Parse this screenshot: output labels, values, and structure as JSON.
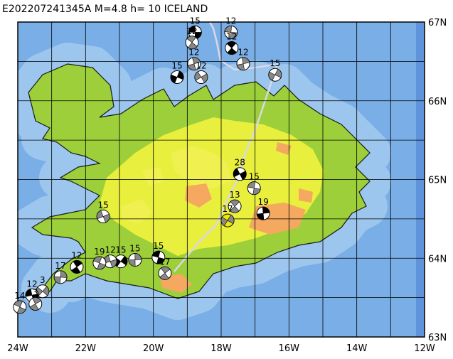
{
  "title": "E202207241345A M=4.8 h= 10 ICELAND",
  "map": {
    "xlim": [
      -24,
      -12
    ],
    "ylim": [
      63,
      67
    ],
    "xticks": [
      {
        "value": -24,
        "label": "24W"
      },
      {
        "value": -22,
        "label": "22W"
      },
      {
        "value": -20,
        "label": "20W"
      },
      {
        "value": -18,
        "label": "18W"
      },
      {
        "value": -16,
        "label": "16W"
      },
      {
        "value": -14,
        "label": "14W"
      },
      {
        "value": -12,
        "label": "12W"
      }
    ],
    "yticks": [
      {
        "value": 63,
        "label": "63N"
      },
      {
        "value": 64,
        "label": "64N"
      },
      {
        "value": 65,
        "label": "65N"
      },
      {
        "value": 66,
        "label": "66N"
      },
      {
        "value": 67,
        "label": "67N"
      }
    ],
    "xgridlines": [
      -24,
      -23,
      -22,
      -21,
      -20,
      -19,
      -18,
      -17,
      -16,
      -15,
      -14,
      -13,
      -12
    ],
    "ygridlines": [
      63,
      63.5,
      64,
      64.5,
      65,
      65.5,
      66,
      66.5,
      67
    ]
  },
  "events": [
    {
      "lon": -18.77,
      "lat": 66.87,
      "label": "15"
    },
    {
      "lon": -18.86,
      "lat": 66.74,
      "label": "12"
    },
    {
      "lon": -18.8,
      "lat": 66.47,
      "label": "12"
    },
    {
      "lon": -19.3,
      "lat": 66.3,
      "label": "15"
    },
    {
      "lon": -18.59,
      "lat": 66.3,
      "label": "12"
    },
    {
      "lon": -17.71,
      "lat": 66.87,
      "label": "12"
    },
    {
      "lon": -17.69,
      "lat": 66.67,
      "label": "12"
    },
    {
      "lon": -17.35,
      "lat": 66.47,
      "label": "12"
    },
    {
      "lon": -16.41,
      "lat": 66.33,
      "label": "15"
    },
    {
      "lon": -17.45,
      "lat": 65.07,
      "label": "28"
    },
    {
      "lon": -17.03,
      "lat": 64.89,
      "label": "15"
    },
    {
      "lon": -17.6,
      "lat": 64.66,
      "label": "13"
    },
    {
      "lon": -16.76,
      "lat": 64.57,
      "label": "19"
    },
    {
      "lon": -17.81,
      "lat": 64.48,
      "label": "17"
    },
    {
      "lon": -21.48,
      "lat": 64.53,
      "label": "15"
    },
    {
      "lon": -19.85,
      "lat": 64.01,
      "label": "15"
    },
    {
      "lon": -19.66,
      "lat": 63.81,
      "label": "17"
    },
    {
      "lon": -20.54,
      "lat": 63.98,
      "label": "15"
    },
    {
      "lon": -20.96,
      "lat": 63.96,
      "label": "15"
    },
    {
      "lon": -21.27,
      "lat": 63.96,
      "label": "12"
    },
    {
      "lon": -21.59,
      "lat": 63.94,
      "label": "19"
    },
    {
      "lon": -22.26,
      "lat": 63.89,
      "label": "12"
    },
    {
      "lon": -22.74,
      "lat": 63.76,
      "label": "17"
    },
    {
      "lon": -23.27,
      "lat": 63.58,
      "label": "3"
    },
    {
      "lon": -23.58,
      "lat": 63.53,
      "label": "12"
    },
    {
      "lon": -23.94,
      "lat": 63.38,
      "label": "14"
    },
    {
      "lon": -23.48,
      "lat": 63.42,
      "label": "3"
    }
  ]
}
